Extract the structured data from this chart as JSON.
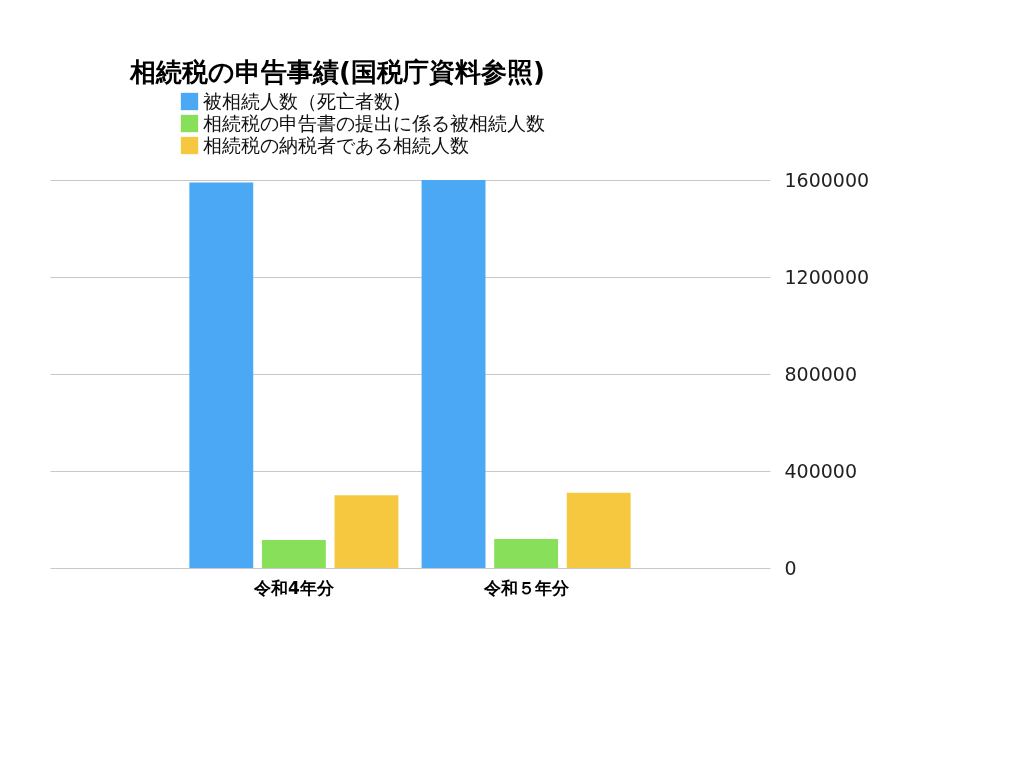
{
  "chart_data": {
    "type": "bar",
    "title": "相続税の申告事績(国税庁資料参照)",
    "categories": [
      "令和4年分",
      "令和５年分"
    ],
    "series": [
      {
        "name": "被相続人数（死亡者数)",
        "color": "#4aa8f5",
        "values": [
          1590000,
          1600000
        ]
      },
      {
        "name": "相続税の申告書の提出に係る被相続人数",
        "color": "#88e05a",
        "values": [
          115000,
          120000
        ]
      },
      {
        "name": "相続税の納税者である相続人数",
        "color": "#f5c840",
        "values": [
          300000,
          310000
        ]
      }
    ],
    "ylim": [
      0,
      1600000
    ],
    "yticks": [
      0,
      400000,
      800000,
      1200000,
      1600000
    ],
    "grid": "y",
    "legend": "top left"
  }
}
